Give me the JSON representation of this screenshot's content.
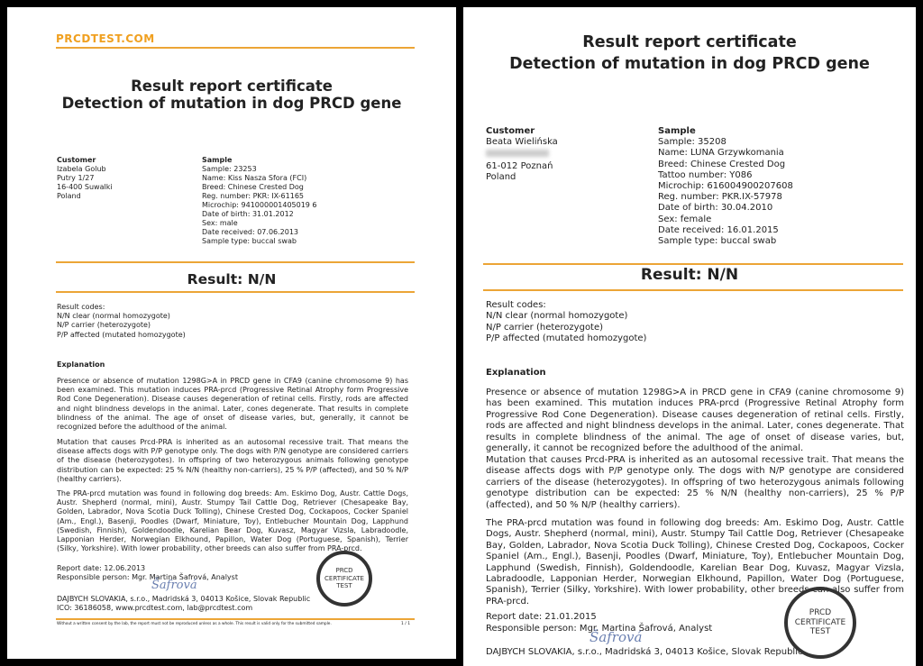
{
  "certificates": [
    {
      "logo": "PRCDTEST.COM",
      "title_line1": "Result report certificate",
      "title_line2": "Detection of mutation in dog PRCD gene",
      "customer": {
        "heading": "Customer",
        "lines": [
          "Izabela Golub",
          "Putry 1/27",
          "16-400 Suwalki",
          "Poland"
        ]
      },
      "sample": {
        "heading": "Sample",
        "lines": [
          "Sample: 23253",
          "Name: Kiss Nasza Sfora (FCI)",
          "Breed: Chinese Crested Dog",
          "Reg. number: PKR: IX-61165",
          "Microchip: 941000001405019 6",
          "Date of birth: 31.01.2012",
          "Sex: male",
          "Date received: 07.06.2013",
          "Sample type: buccal swab"
        ]
      },
      "result": "Result: N/N",
      "codes": [
        "Result codes:",
        "N/N clear (normal homozygote)",
        "N/P carrier (heterozygote)",
        "P/P affected (mutated homozygote)"
      ],
      "explanation_heading": "Explanation",
      "paragraphs": [
        "Presence or absence of mutation 1298G>A in PRCD gene in CFA9 (canine chromosome 9) has been examined. This mutation induces PRA-prcd (Progressive Retinal Atrophy form Progressive Rod Cone Degeneration). Disease causes degeneration of retinal cells. Firstly, rods are affected and night blindness develops in the animal. Later, cones degenerate. That results in complete blindness of the animal. The age of onset of disease varies, but, generally, it cannot be recognized before the adulthood of the animal.",
        "Mutation that causes Prcd-PRA is inherited as an autosomal recessive trait. That means the disease affects dogs with P/P genotype only. The dogs with P/N genotype are considered carriers of the disease (heterozygotes). In offspring of two heterozygous animals following genotype distribution can be expected: 25 % N/N (healthy non-carriers), 25 % P/P (affected), and 50 % N/P (healthy carriers).",
        "The PRA-prcd mutation was found in following dog breeds: Am. Eskimo Dog, Austr. Cattle Dogs, Austr. Shepherd (normal, mini), Austr. Stumpy Tail Cattle Dog, Retriever (Chesapeake Bay, Golden, Labrador, Nova Scotia Duck Tolling), Chinese Crested Dog, Cockapoos, Cocker Spaniel (Am., Engl.), Basenji, Poodles (Dwarf, Miniature, Toy), Entlebucher Mountain Dog, Lapphund (Swedish, Finnish), Goldendoodle, Karelian Bear Dog, Kuvasz, Magyar Vizsla, Labradoodle, Lapponian Herder, Norwegian Elkhound, Papillon, Water Dog (Portuguese, Spanish), Terrier (Silky, Yorkshire). With lower probability, other breeds can also suffer from PRA-prcd."
      ],
      "report_date": "Report date: 12.06.2013",
      "responsible": "Responsible person: Mgr. Martina Šafrová, Analyst",
      "signature": "Šafrová",
      "company": "DAJBYCH SLOVAKIA, s.r.o., Madridská 3, 04013 Košice, Slovak Republic",
      "contact": "ICO: 36186058, www.prcdtest.com, lab@prcdtest.com",
      "stamp": [
        "PRCD",
        "CERTIFICATE",
        "TEST"
      ],
      "footer": "Without a written consent by the lab, the report must not be reproduced unless as a whole. This result is valid only for the submitted sample.",
      "page": "1 / 1"
    },
    {
      "title_line1": "Result report certificate",
      "title_line2": "Detection of mutation in dog PRCD gene",
      "customer": {
        "heading": "Customer",
        "lines": [
          "Beata Wielińska",
          "61-012 Poznań",
          "Poland"
        ]
      },
      "sample": {
        "heading": "Sample",
        "lines": [
          "Sample: 35208",
          "Name: LUNA Grzywkomania",
          "Breed: Chinese Crested Dog",
          "Tattoo number: Y086",
          "Microchip: 616004900207608",
          "Reg. number: PKR.IX-57978",
          "Date of birth: 30.04.2010",
          "Sex: female",
          "Date received: 16.01.2015",
          "Sample type: buccal swab"
        ]
      },
      "result": "Result: N/N",
      "codes": [
        "Result codes:",
        "N/N clear (normal homozygote)",
        "N/P carrier (heterozygote)",
        "P/P affected (mutated homozygote)"
      ],
      "explanation_heading": "Explanation",
      "paragraphs": [
        "Presence or absence of mutation 1298G>A in PRCD gene in CFA9 (canine chromosome 9) has been examined. This mutation induces PRA-prcd (Progressive Retinal Atrophy form Progressive Rod Cone Degeneration). Disease causes degeneration of retinal cells. Firstly, rods are affected and night blindness develops in the animal. Later, cones degenerate. That results in complete blindness of the animal. The age of onset of disease varies, but, generally, it cannot be recognized before the adulthood of the animal.",
        "Mutation that causes Prcd-PRA is inherited as an autosomal recessive trait. That means the disease affects dogs with P/P genotype only. The dogs with N/P genotype are considered carriers of the disease (heterozygotes). In offspring of two heterozygous animals following genotype distribution can be expected: 25 % N/N (healthy non-carriers), 25 % P/P (affected), and 50 % N/P (healthy carriers).",
        "The PRA-prcd mutation was found in following dog breeds: Am. Eskimo Dog, Austr. Cattle Dogs, Austr. Shepherd (normal, mini), Austr. Stumpy Tail Cattle Dog, Retriever (Chesapeake Bay, Golden, Labrador, Nova Scotia Duck Tolling), Chinese Crested Dog, Cockapoos, Cocker Spaniel (Am., Engl.), Basenji, Poodles (Dwarf, Miniature, Toy), Entlebucher Mountain Dog, Lapphund (Swedish, Finnish), Goldendoodle, Karelian Bear Dog, Kuvasz, Magyar Vizsla, Labradoodle, Lapponian Herder, Norwegian Elkhound, Papillon, Water Dog (Portuguese, Spanish), Terrier (Silky, Yorkshire). With lower probability, other breeds can also suffer from PRA-prcd."
      ],
      "report_date": "Report date: 21.01.2015",
      "responsible": "Responsible person: Mgr. Martina Šafrová, Analyst",
      "signature": "Šafrová",
      "company": "DAJBYCH SLOVAKIA, s.r.o., Madridská 3, 04013 Košice, Slovak Republic",
      "stamp": [
        "PRCD",
        "CERTIFICATE",
        "TEST"
      ]
    }
  ],
  "colors": {
    "accent": "#eca536",
    "background": "#000000"
  }
}
